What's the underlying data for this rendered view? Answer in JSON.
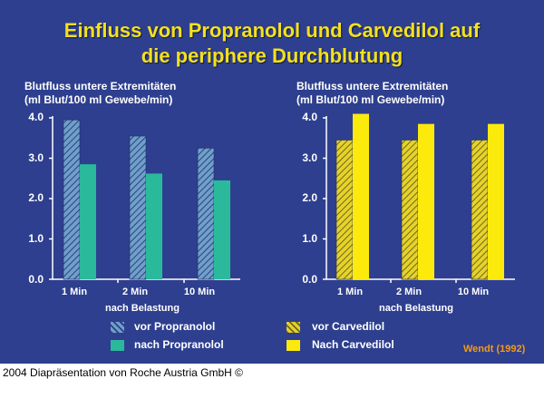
{
  "title_line1": "Einfluss von Propranolol und Carvedilol auf",
  "title_line2": "die periphere Durchblutung",
  "source": "Wendt  (1992)",
  "footer": "2004 Diapräsentation von Roche Austria GmbH ©",
  "colors": {
    "background": "#2e3f8f",
    "title": "#f5e01c",
    "propranolol": "#2ab99a",
    "propranolol_hatch_bg": "#6fa0c8",
    "propranolol_hatch_line": "#2d3f86",
    "carvedilol": "#fbea0c",
    "carvedilol_hatch_bg": "#e6d22a",
    "carvedilol_hatch_line": "#6f6a1f",
    "source": "#f39a1a"
  },
  "chart_data": [
    {
      "type": "bar",
      "title": "",
      "ylabel_line1": "Blutfluss untere Extremitäten",
      "ylabel_line2": "(ml Blut/100 ml Gewebe/min)",
      "xlabel": "nach Belastung",
      "categories": [
        "1 Min",
        "2 Min",
        "10 Min"
      ],
      "yticks": [
        "0.0",
        "1.0",
        "2.0",
        "3.0",
        "4.0"
      ],
      "ylim": [
        0,
        4
      ],
      "series": [
        {
          "name": "vor Propranolol",
          "values": [
            3.95,
            3.55,
            3.25
          ],
          "style": "hatched"
        },
        {
          "name": "nach Propranolol",
          "values": [
            2.85,
            2.62,
            2.45
          ],
          "style": "solid"
        }
      ],
      "legend": [
        "vor Propranolol",
        "nach Propranolol"
      ]
    },
    {
      "type": "bar",
      "title": "",
      "ylabel_line1": "Blutfluss untere Extremitäten",
      "ylabel_line2": "(ml Blut/100 ml Gewebe/min)",
      "xlabel": "nach Belastung",
      "categories": [
        "1 Min",
        "2 Min",
        "10 Min"
      ],
      "yticks": [
        "0.0",
        "1.0",
        "2.0",
        "3.0",
        "4.0"
      ],
      "ylim": [
        0,
        4
      ],
      "series": [
        {
          "name": "vor Carvedilol",
          "values": [
            3.45,
            3.45,
            3.45
          ],
          "style": "hatched"
        },
        {
          "name": "Nach Carvedilol",
          "values": [
            4.1,
            3.85,
            3.85
          ],
          "style": "solid"
        }
      ],
      "legend": [
        "vor Carvedilol",
        "Nach Carvedilol"
      ]
    }
  ]
}
